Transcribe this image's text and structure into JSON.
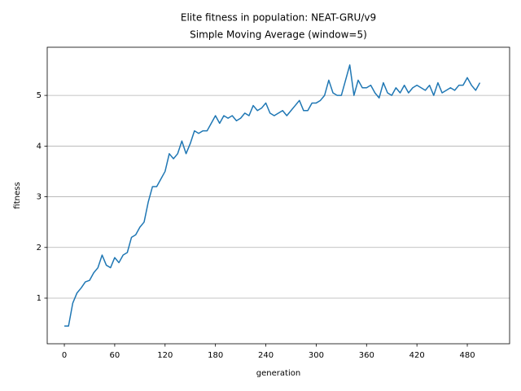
{
  "chart_data": {
    "type": "line",
    "title": "Elite fitness in population: NEAT-GRU/v9",
    "subtitle": "Simple Moving Average (window=5)",
    "x_label": "generation",
    "y_label": "fitness",
    "color": "#1f77b4",
    "x": [
      0,
      5,
      10,
      15,
      20,
      25,
      30,
      35,
      40,
      45,
      50,
      55,
      60,
      65,
      70,
      75,
      80,
      85,
      90,
      95,
      100,
      105,
      110,
      115,
      120,
      125,
      130,
      135,
      140,
      145,
      150,
      155,
      160,
      165,
      170,
      175,
      180,
      185,
      190,
      195,
      200,
      205,
      210,
      215,
      220,
      225,
      230,
      235,
      240,
      245,
      250,
      255,
      260,
      265,
      270,
      275,
      280,
      285,
      290,
      295,
      300,
      305,
      310,
      315,
      320,
      325,
      330,
      335,
      340,
      345,
      350,
      355,
      360,
      365,
      370,
      375,
      380,
      385,
      390,
      395,
      400,
      405,
      410,
      415,
      420,
      425,
      430,
      435,
      440,
      445,
      450,
      455,
      460,
      465,
      470,
      475,
      480,
      485,
      490,
      495
    ],
    "values": [
      0.45,
      0.45,
      0.9,
      1.1,
      1.2,
      1.32,
      1.35,
      1.5,
      1.6,
      1.85,
      1.65,
      1.6,
      1.8,
      1.7,
      1.85,
      1.9,
      2.2,
      2.25,
      2.4,
      2.5,
      2.9,
      3.2,
      3.2,
      3.35,
      3.5,
      3.85,
      3.75,
      3.85,
      4.1,
      3.85,
      4.05,
      4.3,
      4.25,
      4.3,
      4.3,
      4.45,
      4.6,
      4.45,
      4.6,
      4.55,
      4.6,
      4.5,
      4.55,
      4.65,
      4.6,
      4.8,
      4.7,
      4.75,
      4.85,
      4.65,
      4.6,
      4.65,
      4.7,
      4.6,
      4.7,
      4.8,
      4.9,
      4.7,
      4.7,
      4.85,
      4.85,
      4.9,
      5.0,
      5.3,
      5.05,
      5.0,
      5.0,
      5.3,
      5.6,
      5.0,
      5.3,
      5.15,
      5.15,
      5.2,
      5.05,
      4.95,
      5.25,
      5.05,
      5.0,
      5.15,
      5.05,
      5.2,
      5.05,
      5.15,
      5.2,
      5.15,
      5.1,
      5.2,
      5.0,
      5.25,
      5.05,
      5.1,
      5.15,
      5.1,
      5.2,
      5.2,
      5.35,
      5.2,
      5.1,
      5.25
    ],
    "xlim": [
      -20.4,
      530.4
    ],
    "xticks": [
      0,
      60,
      120,
      180,
      240,
      300,
      360,
      420,
      480
    ],
    "ylim": [
      0.1,
      5.95
    ],
    "yticks": [
      1,
      2,
      3,
      4,
      5
    ],
    "grid": "y"
  }
}
